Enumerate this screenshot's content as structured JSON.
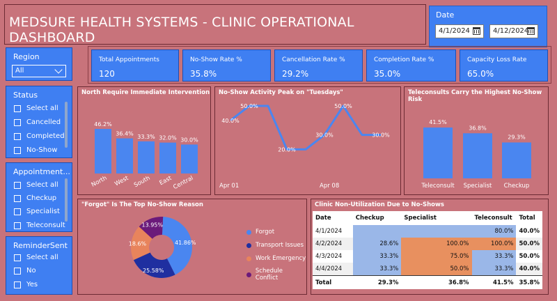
{
  "header": {
    "title": "MEDSURE HEALTH SYSTEMS  - CLINIC OPERATIONAL DASHBOARD"
  },
  "date_filter": {
    "label": "Date",
    "start": "4/1/2024",
    "end": "4/12/2024"
  },
  "region": {
    "title": "Region",
    "selected": "All"
  },
  "status": {
    "title": "Status",
    "options": [
      "Select all",
      "Cancelled",
      "Completed",
      "No-Show"
    ]
  },
  "appointment": {
    "title": "Appointment...",
    "options": [
      "Select all",
      "Checkup",
      "Specialist",
      "Teleconsult"
    ]
  },
  "reminder": {
    "title": "ReminderSent",
    "options": [
      "Select all",
      "No",
      "Yes"
    ]
  },
  "kpis": [
    {
      "label": "Total Appointments",
      "value": "120"
    },
    {
      "label": "No-Show Rate %",
      "value": "35.8%"
    },
    {
      "label": "Cancellation Rate %",
      "value": "29.2%"
    },
    {
      "label": "Completion Rate %",
      "value": "35.0%"
    },
    {
      "label": "Capacity Loss Rate",
      "value": "65.0%"
    }
  ],
  "colors": {
    "bar": "#4a86f0",
    "panel": "#3f7ff2",
    "background": "#c8737b",
    "donut": [
      "#4a86f0",
      "#1f2fa0",
      "#e8845c",
      "#6b1a7a"
    ]
  },
  "chart_data": [
    {
      "type": "bar",
      "title": "North Require Immediate Intervention",
      "categories": [
        "North",
        "West",
        "South",
        "East",
        "Central"
      ],
      "values": [
        46.2,
        36.4,
        33.3,
        32.0,
        30.0
      ],
      "labels": [
        "46.2%",
        "36.4%",
        "33.3%",
        "32.0%",
        "30.0%"
      ]
    },
    {
      "type": "line",
      "title": "No-Show Activity Peak on \"Tuesdays\"",
      "x_ticks": [
        "Apr 01",
        "Apr 08"
      ],
      "values": [
        40.0,
        50.0,
        50.0,
        20.0,
        20.0,
        30.0,
        50.0,
        30.0,
        30.0
      ],
      "labels": [
        "40.0%",
        "50.0%",
        "",
        "20.0%",
        "",
        "30.0%",
        "50.0%",
        "",
        "30.0%"
      ]
    },
    {
      "type": "bar",
      "title": "Teleconsults Carry the Highest No-Show Risk",
      "categories": [
        "Teleconsult",
        "Specialist",
        "Checkup"
      ],
      "values": [
        41.5,
        36.8,
        29.3
      ],
      "labels": [
        "41.5%",
        "36.8%",
        "29.3%"
      ]
    },
    {
      "type": "pie",
      "title": "\"Forgot\" Is The Top No-Show Reason",
      "categories": [
        "Forgot",
        "Transport Issues",
        "Work Emergency",
        "Schedule Conflict"
      ],
      "values": [
        41.86,
        25.58,
        18.6,
        13.95
      ],
      "labels": [
        "41.86%",
        "25.58%",
        "18.6%",
        "13.95%"
      ]
    },
    {
      "type": "table",
      "title": "Clinic Non-Utilization Due to No-Shows",
      "columns": [
        "Date",
        "Checkup",
        "Specialist",
        "Teleconsult",
        "Total"
      ],
      "rows": [
        [
          "4/1/2024",
          "",
          "",
          "80.0%",
          "40.0%"
        ],
        [
          "4/2/2024",
          "28.6%",
          "100.0%",
          "100.0%",
          "50.0%"
        ],
        [
          "4/3/2024",
          "33.3%",
          "75.0%",
          "33.3%",
          "50.0%"
        ],
        [
          "4/4/2024",
          "33.3%",
          "50.0%",
          "33.3%",
          "40.0%"
        ]
      ],
      "total": [
        "Total",
        "29.3%",
        "36.8%",
        "41.5%",
        "35.8%"
      ]
    }
  ]
}
